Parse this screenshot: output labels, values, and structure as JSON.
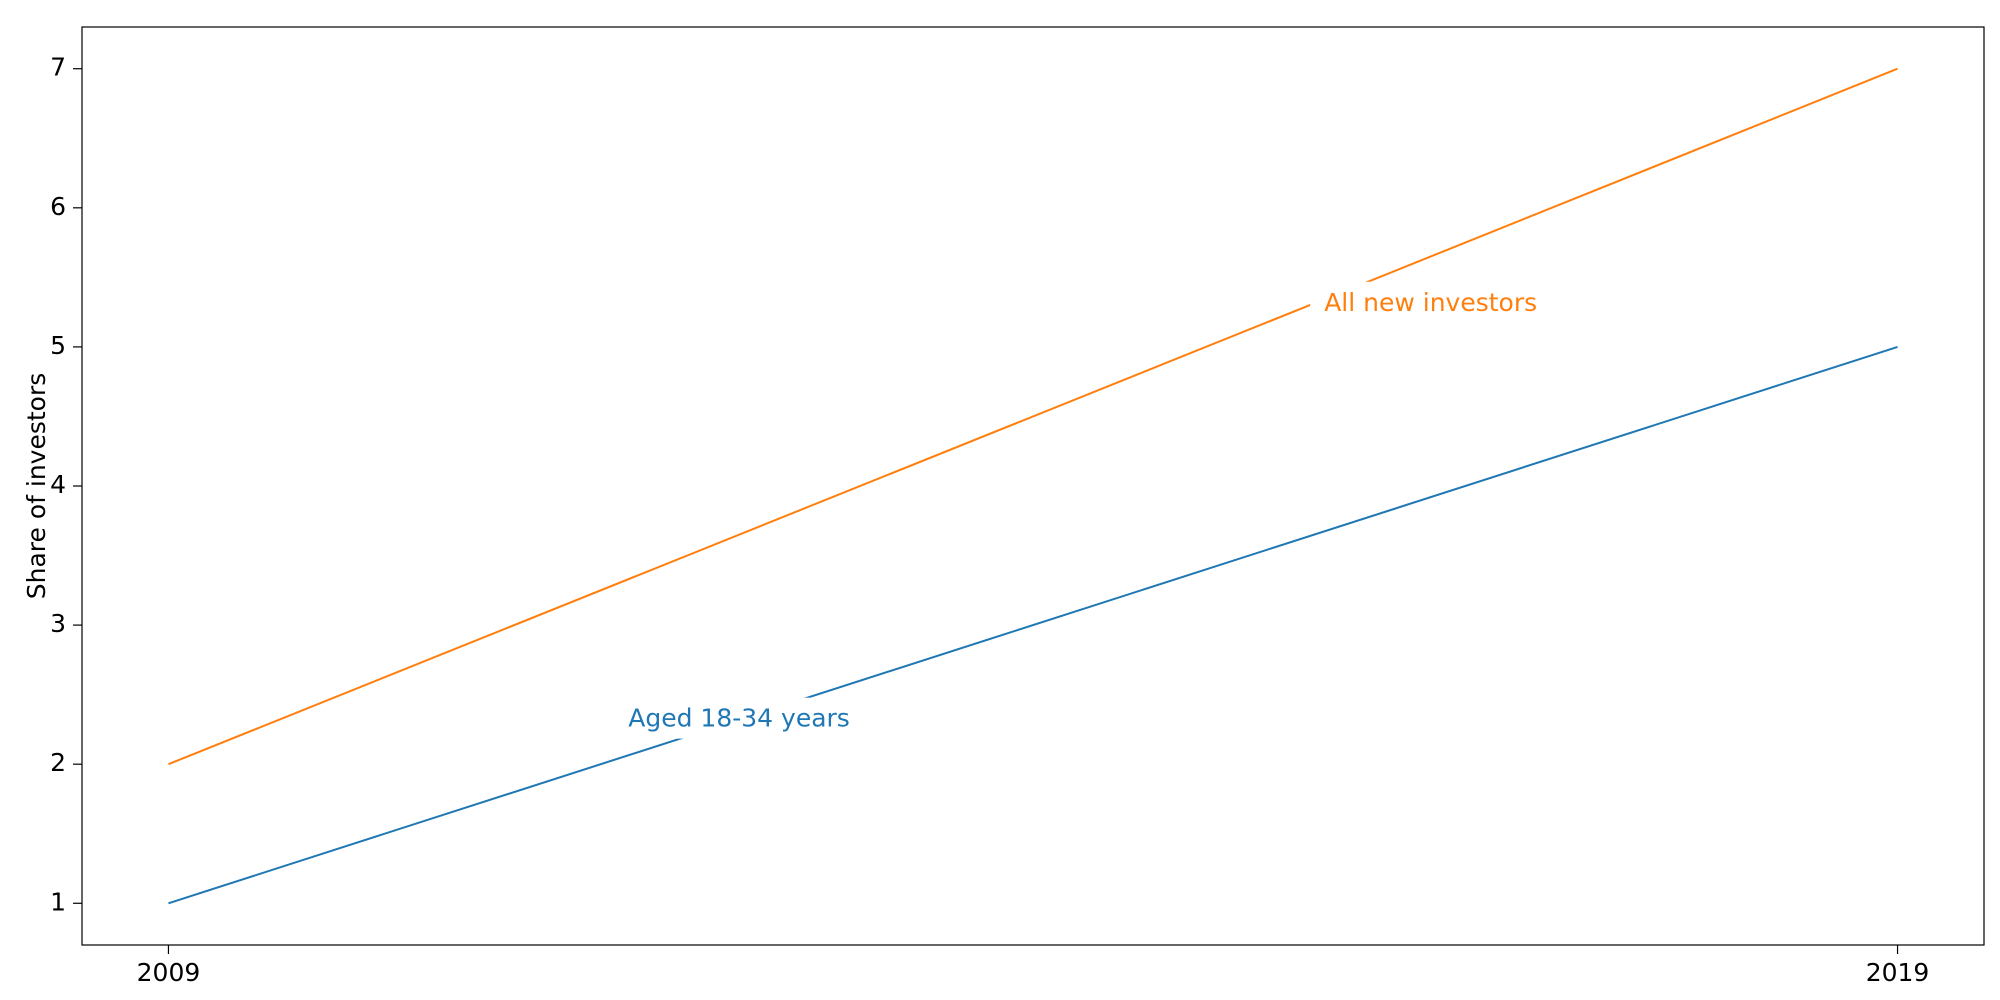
{
  "chart_data": {
    "type": "line",
    "title": "",
    "xlabel": "",
    "ylabel": "Share of investors",
    "x": [
      2009,
      2019
    ],
    "xticks": [
      "2009",
      "2019"
    ],
    "yticks": [
      1,
      2,
      3,
      4,
      5,
      6,
      7
    ],
    "ylim": [
      0.7,
      7.3
    ],
    "grid": false,
    "series": [
      {
        "name": "Aged 18-34 years",
        "values": [
          1,
          5
        ],
        "color": "#1f77b4"
      },
      {
        "name": "All new investors",
        "values": [
          2,
          7
        ],
        "color": "#ff7f0e"
      }
    ],
    "annotations": [
      {
        "text": "Aged 18-34 years",
        "series": 0,
        "at_x": 2012.3,
        "at_y": 2.32,
        "color": "#1f77b4"
      },
      {
        "text": "All new investors",
        "series": 1,
        "at_x": 2016.3,
        "at_y": 5.31,
        "color": "#ff7f0e"
      }
    ]
  }
}
